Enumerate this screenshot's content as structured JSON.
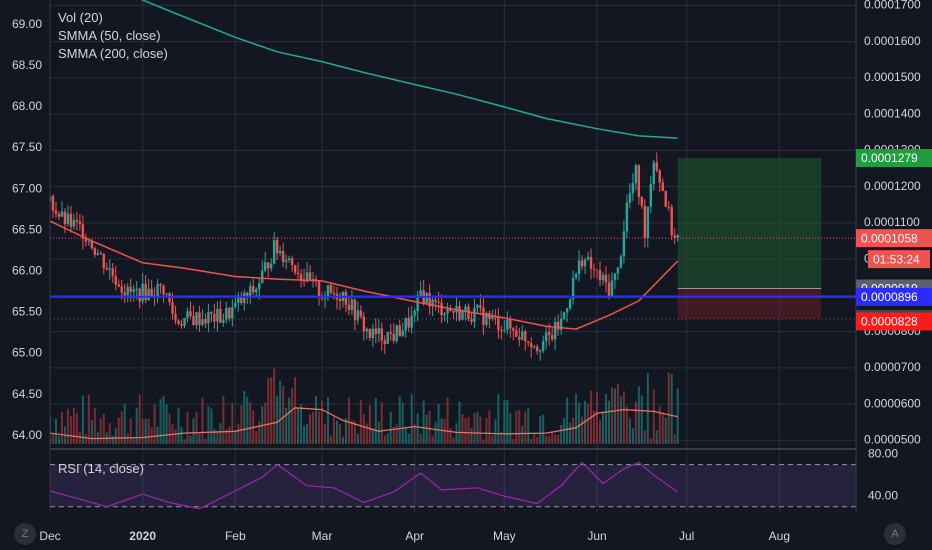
{
  "legend": {
    "vol": "Vol (20)",
    "smma50": "SMMA (50, close)",
    "smma200": "SMMA (200, close)",
    "rsi": "RSI (14, close)"
  },
  "buttons": {
    "z": "Z",
    "a": "A"
  },
  "colors": {
    "bg": "#131722",
    "grid": "#2a2e39",
    "up": "#26a69a",
    "down": "#ef5350",
    "smma50": "#f05350",
    "smma200": "#22ab94",
    "vol_ma": "#e57366",
    "rsi": "#9c27b0",
    "support": "#2a2cff",
    "text": "#d1d4dc"
  },
  "chart_data": {
    "type": "candlestick",
    "x_tick_labels": [
      "Dec",
      "2020",
      "Feb",
      "Mar",
      "Apr",
      "May",
      "Jun",
      "Jul",
      "Aug"
    ],
    "left_axis": {
      "ticks": [
        64.0,
        64.5,
        65.0,
        65.5,
        66.0,
        66.5,
        67.0,
        67.5,
        68.0,
        68.5,
        69.0
      ],
      "range": [
        63.9,
        69.3
      ]
    },
    "right_axis": {
      "ticks": [
        "0.0000500",
        "0.0000600",
        "0.0000700",
        "0.0000800",
        "0.0000900",
        "0.0001000",
        "0.0001100",
        "0.0001200",
        "0.0001300",
        "0.0001400",
        "0.0001500",
        "0.0001600",
        "0.0001700"
      ],
      "range": [
        4.9e-05,
        0.0001715
      ]
    },
    "price_labels": [
      {
        "text": "0.0001279",
        "value": 0.0001279,
        "color": "#1e9e3e",
        "role": "target"
      },
      {
        "text": "0.0001058",
        "value": 0.0001058,
        "color": "#ef5350",
        "role": "last_price"
      },
      {
        "text": "01:53:24",
        "value": 0.0001058,
        "color": "#ef5350",
        "role": "countdown"
      },
      {
        "text": "0.0000919",
        "value": 9.19e-05,
        "color": "#5d606b",
        "role": "entry"
      },
      {
        "text": "0.0000896",
        "value": 8.96e-05,
        "color": "#2a2cff",
        "role": "support_line"
      },
      {
        "text": "0.0000835",
        "value": 8.35e-05,
        "color": "#2f4f4f",
        "role": "level"
      },
      {
        "text": "0.0000828",
        "value": 8.28e-05,
        "color": "#ff1b1b",
        "role": "stop"
      }
    ],
    "position_tool": {
      "entry": 9.19e-05,
      "target": 0.0001279,
      "stop": 8.35e-05,
      "start": "Jun 28",
      "end": "Aug 15"
    },
    "smma200_points": [
      [
        "Dec 29",
        0.0001725
      ],
      [
        "Jan 15",
        0.0001668
      ],
      [
        "Feb 1",
        0.0001612
      ],
      [
        "Feb 15",
        0.0001572
      ],
      [
        "Mar 1",
        0.0001545
      ],
      [
        "Mar 15",
        0.0001515
      ],
      [
        "Apr 1",
        0.0001482
      ],
      [
        "Apr 15",
        0.0001455
      ],
      [
        "May 1",
        0.000142
      ],
      [
        "May 15",
        0.0001388
      ],
      [
        "Jun 1",
        0.000136
      ],
      [
        "Jun 15",
        0.000134
      ],
      [
        "Jun 28",
        0.0001334
      ]
    ],
    "smma50_points": [
      [
        "Dec 1",
        0.0001105
      ],
      [
        "Dec 15",
        0.000105
      ],
      [
        "Jan 1",
        9.9e-05
      ],
      [
        "Jan 15",
        9.75e-05
      ],
      [
        "Feb 1",
        9.52e-05
      ],
      [
        "Feb 15",
        9.45e-05
      ],
      [
        "Mar 1",
        9.4e-05
      ],
      [
        "Mar 15",
        9.12e-05
      ],
      [
        "Apr 1",
        8.83e-05
      ],
      [
        "Apr 15",
        8.6e-05
      ],
      [
        "May 1",
        8.38e-05
      ],
      [
        "May 15",
        8.15e-05
      ],
      [
        "May 25",
        8.07e-05
      ],
      [
        "Jun 5",
        8.45e-05
      ],
      [
        "Jun 15",
        8.85e-05
      ],
      [
        "Jun 28",
        9.95e-05
      ]
    ],
    "price_path": [
      [
        "Dec 1",
        0.000116
      ],
      [
        "Dec 5",
        0.000111
      ],
      [
        "Dec 12",
        0.000108
      ],
      [
        "Dec 20",
        9.8e-05
      ],
      [
        "Dec 27",
        9.05e-05
      ],
      [
        "Jan 3",
        9.1e-05
      ],
      [
        "Jan 8",
        9.2e-05
      ],
      [
        "Jan 12",
        8.3e-05
      ],
      [
        "Jan 20",
        8.38e-05
      ],
      [
        "Jan 28",
        8.4e-05
      ],
      [
        "Feb 1",
        8.68e-05
      ],
      [
        "Feb 8",
        9.2e-05
      ],
      [
        "Feb 14",
        0.000103
      ],
      [
        "Feb 18",
        0.000101
      ],
      [
        "Feb 25",
        9.4e-05
      ],
      [
        "Mar 1",
        9.05e-05
      ],
      [
        "Mar 8",
        9.05e-05
      ],
      [
        "Mar 13",
        8.4e-05
      ],
      [
        "Mar 17",
        7.9e-05
      ],
      [
        "Mar 25",
        7.9e-05
      ],
      [
        "Apr 1",
        8.4e-05
      ],
      [
        "Apr 3",
        9.1e-05
      ],
      [
        "Apr 8",
        8.7e-05
      ],
      [
        "Apr 15",
        8.55e-05
      ],
      [
        "Apr 22",
        8.5e-05
      ],
      [
        "Apr 30",
        8.2e-05
      ],
      [
        "May 7",
        7.9e-05
      ],
      [
        "May 12",
        7.65e-05
      ],
      [
        "May 16",
        7.8e-05
      ],
      [
        "May 20",
        8.25e-05
      ],
      [
        "May 24",
        9.35e-05
      ],
      [
        "May 27",
        0.0001005
      ],
      [
        "Jun 1",
        9.55e-05
      ],
      [
        "Jun 5",
        9.2e-05
      ],
      [
        "Jun 8",
        9.65e-05
      ],
      [
        "Jun 11",
        0.000115
      ],
      [
        "Jun 14",
        0.0001235
      ],
      [
        "Jun 17",
        0.000108
      ],
      [
        "Jun 20",
        0.0001285
      ],
      [
        "Jun 24",
        0.000116
      ],
      [
        "Jun 26",
        0.000108
      ],
      [
        "Jun 28",
        0.0001058
      ]
    ],
    "volume_points": [
      [
        "Dec 1",
        5.2e-05
      ],
      [
        "Dec 15",
        5.05e-05
      ],
      [
        "Jan 1",
        5.08e-05
      ],
      [
        "Jan 15",
        5.2e-05
      ],
      [
        "Feb 1",
        5.25e-05
      ],
      [
        "Feb 15",
        5.5e-05
      ],
      [
        "Feb 21",
        5.9e-05
      ],
      [
        "Mar 1",
        5.85e-05
      ],
      [
        "Mar 8",
        5.55e-05
      ],
      [
        "Mar 20",
        5.25e-05
      ],
      [
        "Apr 1",
        5.38e-05
      ],
      [
        "Apr 15",
        5.22e-05
      ],
      [
        "May 1",
        5.18e-05
      ],
      [
        "May 15",
        5.2e-05
      ],
      [
        "May 25",
        5.35e-05
      ],
      [
        "Jun 1",
        5.75e-05
      ],
      [
        "Jun 10",
        5.85e-05
      ],
      [
        "Jun 20",
        5.8e-05
      ],
      [
        "Jun 28",
        5.65e-05
      ]
    ],
    "rsi_axis": {
      "ticks": [
        "80.00",
        "40.00"
      ],
      "range": [
        25,
        82
      ],
      "bands": [
        70,
        30
      ]
    },
    "rsi_points": [
      [
        "Dec 1",
        45
      ],
      [
        "Dec 10",
        38
      ],
      [
        "Dec 20",
        30
      ],
      [
        "Jan 1",
        42
      ],
      [
        "Jan 10",
        34
      ],
      [
        "Jan 20",
        28
      ],
      [
        "Feb 1",
        45
      ],
      [
        "Feb 10",
        58
      ],
      [
        "Feb 15",
        70
      ],
      [
        "Feb 25",
        50
      ],
      [
        "Mar 5",
        48
      ],
      [
        "Mar 15",
        34
      ],
      [
        "Mar 25",
        44
      ],
      [
        "Apr 3",
        62
      ],
      [
        "Apr 10",
        46
      ],
      [
        "Apr 22",
        48
      ],
      [
        "May 1",
        40
      ],
      [
        "May 12",
        33
      ],
      [
        "May 20",
        50
      ],
      [
        "May 27",
        72
      ],
      [
        "Jun 3",
        52
      ],
      [
        "Jun 10",
        66
      ],
      [
        "Jun 15",
        72
      ],
      [
        "Jun 20",
        60
      ],
      [
        "Jun 28",
        44
      ]
    ]
  }
}
